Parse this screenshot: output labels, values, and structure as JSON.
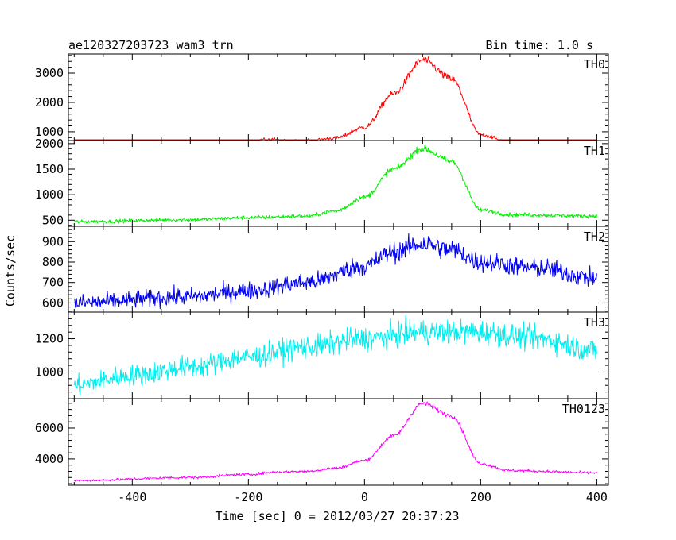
{
  "chart_data": {
    "type": "line",
    "title": "ae120327203723_wam3_trn",
    "bin_label": "Bin time: 1.0 s",
    "xlabel": "Time [sec] 0 = 2012/03/27 20:37:23",
    "ylabel": "Counts/sec",
    "xlim": [
      -510,
      420
    ],
    "x_ticks": [
      -400,
      -200,
      0,
      200,
      400
    ],
    "grid": false,
    "panels": [
      {
        "name": "TH0",
        "color": "#ff0000",
        "ylim": [
          700,
          3650
        ],
        "y_ticks": [
          1000,
          2000,
          3000
        ],
        "noise": 40,
        "profile": [
          [
            -500,
            560
          ],
          [
            -300,
            600
          ],
          [
            -200,
            640
          ],
          [
            -160,
            740
          ],
          [
            -140,
            680
          ],
          [
            -100,
            680
          ],
          [
            -50,
            780
          ],
          [
            0,
            1150
          ],
          [
            50,
            2300
          ],
          [
            100,
            3450
          ],
          [
            150,
            2800
          ],
          [
            200,
            900
          ],
          [
            250,
            640
          ],
          [
            400,
            580
          ]
        ]
      },
      {
        "name": "TH1",
        "color": "#00ee00",
        "ylim": [
          380,
          2060
        ],
        "y_ticks": [
          500,
          1000,
          1500,
          2000
        ],
        "noise": 25,
        "profile": [
          [
            -500,
            470
          ],
          [
            -300,
            510
          ],
          [
            -200,
            550
          ],
          [
            -100,
            580
          ],
          [
            -50,
            680
          ],
          [
            0,
            950
          ],
          [
            50,
            1500
          ],
          [
            100,
            1900
          ],
          [
            150,
            1650
          ],
          [
            200,
            700
          ],
          [
            250,
            610
          ],
          [
            400,
            580
          ]
        ]
      },
      {
        "name": "TH2",
        "color": "#0000ee",
        "ylim": [
          555,
          975
        ],
        "y_ticks": [
          600,
          700,
          800,
          900
        ],
        "noise": 30,
        "profile": [
          [
            -500,
            600
          ],
          [
            -300,
            630
          ],
          [
            -200,
            660
          ],
          [
            -100,
            700
          ],
          [
            0,
            780
          ],
          [
            50,
            850
          ],
          [
            100,
            890
          ],
          [
            150,
            860
          ],
          [
            200,
            800
          ],
          [
            300,
            770
          ],
          [
            400,
            720
          ]
        ]
      },
      {
        "name": "TH3",
        "color": "#00eeee",
        "ylim": [
          840,
          1360
        ],
        "y_ticks": [
          1000,
          1200
        ],
        "noise": 45,
        "profile": [
          [
            -500,
            920
          ],
          [
            -400,
            980
          ],
          [
            -300,
            1030
          ],
          [
            -200,
            1090
          ],
          [
            -100,
            1150
          ],
          [
            0,
            1200
          ],
          [
            100,
            1240
          ],
          [
            200,
            1240
          ],
          [
            300,
            1200
          ],
          [
            400,
            1130
          ]
        ]
      },
      {
        "name": "TH0123",
        "color": "#ff00ff",
        "ylim": [
          2300,
          7900
        ],
        "y_ticks": [
          4000,
          6000
        ],
        "noise": 60,
        "profile": [
          [
            -500,
            2600
          ],
          [
            -300,
            2800
          ],
          [
            -200,
            3000
          ],
          [
            -150,
            3150
          ],
          [
            -100,
            3200
          ],
          [
            -50,
            3400
          ],
          [
            0,
            3900
          ],
          [
            50,
            5500
          ],
          [
            100,
            7600
          ],
          [
            150,
            6800
          ],
          [
            200,
            3700
          ],
          [
            250,
            3250
          ],
          [
            400,
            3100
          ]
        ]
      }
    ]
  }
}
